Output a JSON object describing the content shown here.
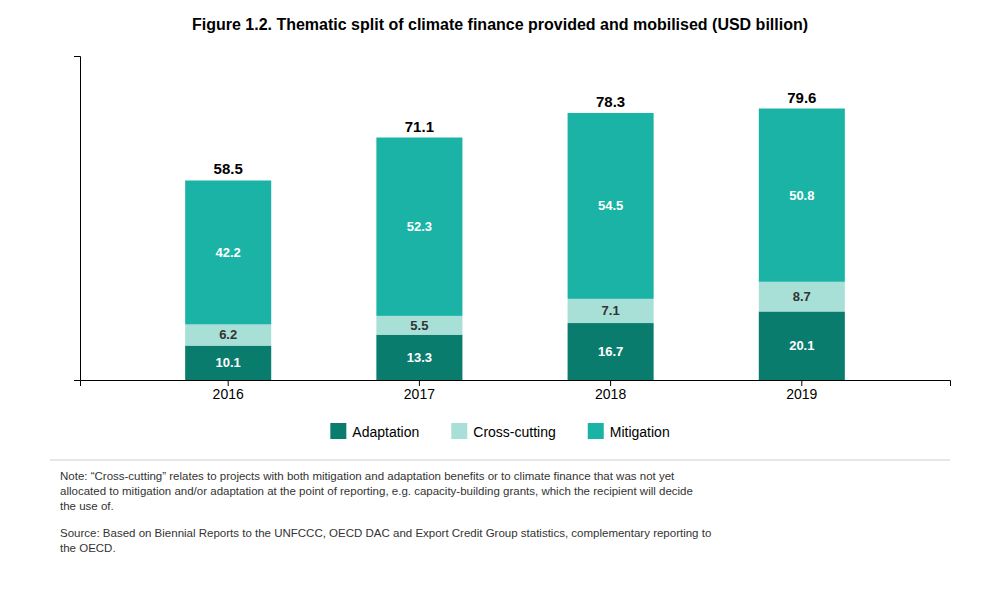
{
  "chart_data": {
    "type": "bar",
    "stacked": true,
    "title": "Figure 1.2. Thematic split of climate finance provided and mobilised (USD billion)",
    "categories": [
      "2016",
      "2017",
      "2018",
      "2019"
    ],
    "series": [
      {
        "name": "Adaptation",
        "color": "#0a7c6e",
        "values": [
          10.1,
          13.3,
          16.7,
          20.1
        ]
      },
      {
        "name": "Cross-cutting",
        "color": "#a8e0d8",
        "values": [
          6.2,
          5.5,
          7.1,
          8.7
        ]
      },
      {
        "name": "Mitigation",
        "color": "#1ab3a6",
        "values": [
          42.2,
          52.3,
          54.5,
          50.8
        ]
      }
    ],
    "totals": [
      58.5,
      71.1,
      78.3,
      79.6
    ],
    "ylim": [
      0,
      95
    ],
    "yticks": [],
    "grid": false,
    "legend": "bottom",
    "data_labels": true,
    "tick_labels": "x",
    "annotations": [
      "Note: “Cross-cutting” relates to projects with both mitigation and adaptation benefits or to climate finance that was not yet\nallocated to mitigation and/or adaptation at the point of reporting, e.g. capacity-building grants, which the recipient will decide\nthe use of.",
      "Source: Based on Biennial Reports to the UNFCCC, OECD DAC and Export Credit Group statistics, complementary reporting to\nthe OECD."
    ]
  }
}
